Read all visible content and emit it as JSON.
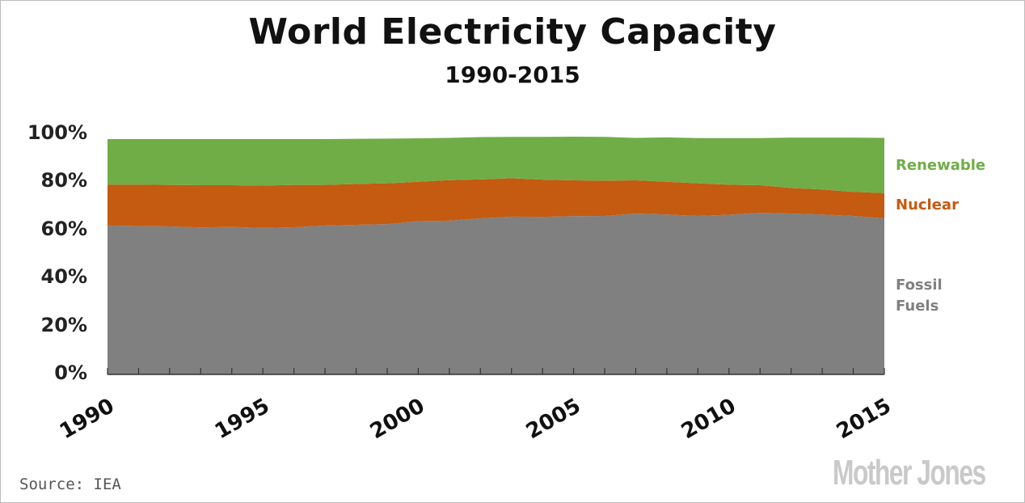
{
  "chart_data": {
    "type": "area",
    "title": "World Electricity Capacity",
    "subtitle": "1990-2015",
    "x": [
      1990,
      1991,
      1992,
      1993,
      1994,
      1995,
      1996,
      1997,
      1998,
      1999,
      2000,
      2001,
      2002,
      2003,
      2004,
      2005,
      2006,
      2007,
      2008,
      2009,
      2010,
      2011,
      2012,
      2013,
      2014,
      2015
    ],
    "series": [
      {
        "name": "Fossil Fuels",
        "label_lines": [
          "Fossil",
          "Fuels"
        ],
        "color": "#808080",
        "values": [
          62,
          61.8,
          61.6,
          61.2,
          61.4,
          61,
          61.3,
          62,
          62.3,
          62.6,
          63.8,
          64,
          65,
          65.7,
          65.6,
          65.9,
          66,
          67,
          66.6,
          66,
          66.5,
          67.3,
          67,
          66.6,
          66,
          65
        ]
      },
      {
        "name": "Nuclear",
        "label_lines": [
          "Nuclear"
        ],
        "color": "#c55a11",
        "values": [
          17,
          17.2,
          17.3,
          17.6,
          17.4,
          17.6,
          17.6,
          16.9,
          17,
          17,
          16.4,
          16.9,
          16.2,
          16,
          15.5,
          14.9,
          14.7,
          13.8,
          13.6,
          13.6,
          12.5,
          11.5,
          10.6,
          10.4,
          10,
          10.5
        ]
      },
      {
        "name": "Renewable",
        "label_lines": [
          "Renewable"
        ],
        "color": "#70ad47",
        "values": [
          19,
          19,
          19.1,
          19.2,
          19.2,
          19.4,
          19.1,
          19.1,
          18.8,
          18.6,
          18.1,
          17.6,
          17.6,
          17.2,
          17.8,
          18.2,
          18.2,
          17.7,
          18.5,
          18.8,
          19.4,
          19.6,
          21,
          21.6,
          22.6,
          23
        ]
      }
    ],
    "yticks": [
      "0%",
      "20%",
      "40%",
      "60%",
      "80%",
      "100%"
    ],
    "ylim": [
      0,
      100
    ],
    "xtick_labels": [
      "1990",
      "1995",
      "2000",
      "2005",
      "2010",
      "2015"
    ],
    "xtick_values": [
      1990,
      1995,
      2000,
      2005,
      2010,
      2015
    ],
    "xlim": [
      1990,
      2015
    ]
  },
  "source": "Source: IEA",
  "logo": "Mother Jones"
}
